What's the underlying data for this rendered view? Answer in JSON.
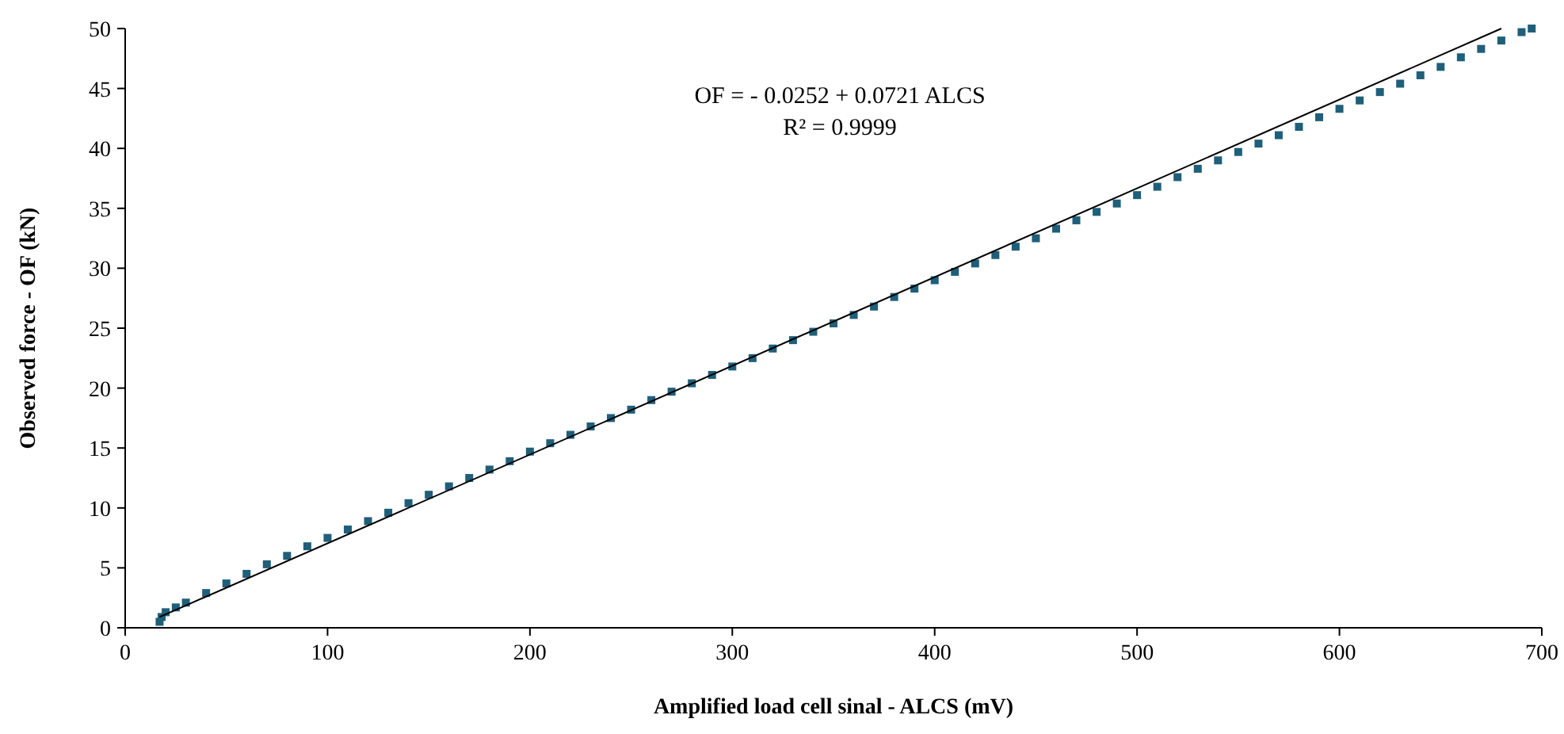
{
  "chart_data": {
    "type": "scatter",
    "xlabel": "Amplified  load cell sinal - ALCS (mV)",
    "ylabel": "Observed force - OF (kN)",
    "annotations": [
      "OF = - 0.0252 + 0.0721 ALCS",
      "R² = 0.9999"
    ],
    "xlim": [
      0,
      700
    ],
    "xticks": [
      0,
      100,
      200,
      300,
      400,
      500,
      600,
      700
    ],
    "ylim": [
      0,
      50
    ],
    "yticks": [
      0,
      5,
      10,
      15,
      20,
      25,
      30,
      35,
      40,
      45,
      50
    ],
    "grid": false,
    "series": [
      {
        "color": "#1f5f7a",
        "marker": "square",
        "x": [
          17,
          18,
          20,
          25,
          30,
          40,
          50,
          60,
          70,
          80,
          90,
          100,
          110,
          120,
          130,
          140,
          150,
          160,
          170,
          180,
          190,
          200,
          210,
          220,
          230,
          240,
          250,
          260,
          270,
          280,
          290,
          300,
          310,
          320,
          330,
          340,
          350,
          360,
          370,
          380,
          390,
          400,
          410,
          420,
          430,
          440,
          450,
          460,
          470,
          480,
          490,
          500,
          510,
          520,
          530,
          540,
          550,
          560,
          570,
          580,
          590,
          600,
          610,
          620,
          630,
          640,
          650,
          660,
          670,
          680,
          690,
          695
        ],
        "values": [
          0.5,
          0.9,
          1.3,
          1.7,
          2.1,
          2.9,
          3.7,
          4.5,
          5.3,
          6.0,
          6.8,
          7.5,
          8.2,
          8.9,
          9.6,
          10.4,
          11.1,
          11.8,
          12.5,
          13.2,
          13.9,
          14.7,
          15.4,
          16.1,
          16.8,
          17.5,
          18.2,
          19.0,
          19.7,
          20.4,
          21.1,
          21.8,
          22.5,
          23.3,
          24.0,
          24.7,
          25.4,
          26.1,
          26.8,
          27.6,
          28.3,
          29.0,
          29.7,
          30.4,
          31.1,
          31.8,
          32.5,
          33.3,
          34.0,
          34.7,
          35.4,
          36.1,
          36.8,
          37.6,
          38.3,
          39.0,
          39.7,
          40.4,
          41.1,
          41.8,
          42.6,
          43.3,
          44.0,
          44.7,
          45.4,
          46.1,
          46.8,
          47.6,
          48.3,
          49.0,
          49.7,
          50.0
        ]
      },
      {
        "type": "line",
        "color": "#000000",
        "line_style": "solid",
        "marker": "none",
        "x": [
          17,
          680
        ],
        "values": [
          0.9,
          50
        ]
      }
    ]
  }
}
